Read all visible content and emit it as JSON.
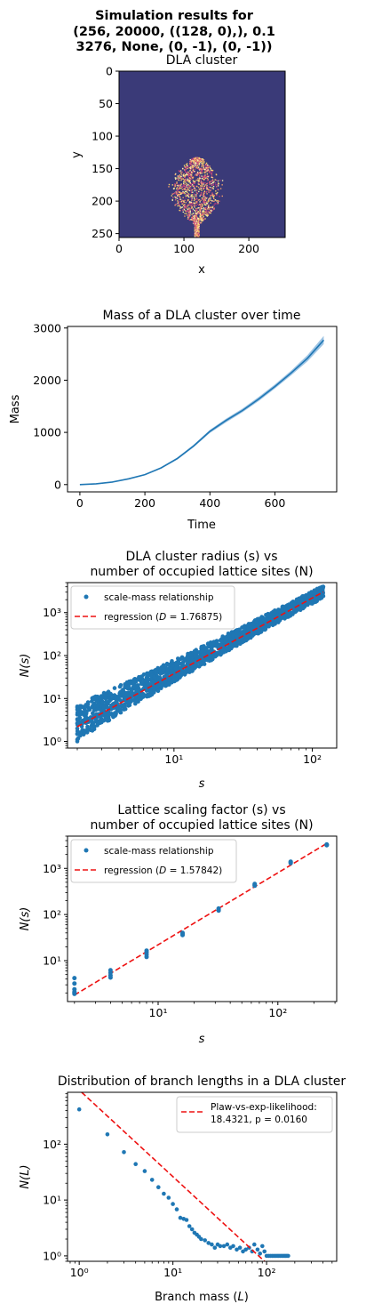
{
  "suptitle_lines": [
    "Simulation results for",
    "(256, 20000, ((128, 0),), 0.1",
    "3276, None, (0, -1), (0, -1))"
  ],
  "chart_data": [
    {
      "type": "heatmap",
      "title": "DLA cluster",
      "xlabel": "x",
      "ylabel": "y",
      "xlim": [
        0,
        256
      ],
      "ylim": [
        256,
        0
      ],
      "xticks": [
        "0",
        "100",
        "200"
      ],
      "yticks": [
        "0",
        "50",
        "100",
        "150",
        "200",
        "250"
      ],
      "background_color": "#3a3a78",
      "cluster_colors": [
        "#f7d36a",
        "#f2a06a",
        "#e05a7a",
        "#b03a7e",
        "#f7f0b0"
      ],
      "cluster": {
        "center_x": 119,
        "top_y": 132,
        "bottom_y": 255,
        "half_width": 46
      }
    },
    {
      "type": "line",
      "title": "Mass of a DLA cluster over time",
      "xlabel": "Time",
      "ylabel": "Mass",
      "xlim": [
        -38,
        790
      ],
      "ylim": [
        -140,
        3030
      ],
      "xticks": [
        0,
        200,
        400,
        600
      ],
      "yticks": [
        0,
        1000,
        2000,
        3000
      ],
      "color": "#1f77b4",
      "band_color": "#9ec4e4",
      "x": [
        0,
        50,
        100,
        150,
        200,
        250,
        300,
        350,
        400,
        450,
        500,
        550,
        600,
        650,
        700,
        750
      ],
      "mean": [
        0,
        15,
        50,
        110,
        190,
        320,
        500,
        740,
        1020,
        1230,
        1420,
        1640,
        1880,
        2140,
        2420,
        2770
      ],
      "lower": [
        0,
        14,
        48,
        105,
        182,
        306,
        480,
        715,
        990,
        1195,
        1385,
        1600,
        1840,
        2095,
        2360,
        2690
      ],
      "upper": [
        0,
        16,
        52,
        115,
        198,
        334,
        520,
        765,
        1050,
        1265,
        1455,
        1680,
        1920,
        2185,
        2480,
        2850
      ]
    },
    {
      "type": "scatter",
      "title_lines": [
        "DLA cluster radius (s) vs",
        "number of occupied lattice sites (N)"
      ],
      "xlabel": "s",
      "ylabel": "N(s)",
      "xscale": "log",
      "yscale": "log",
      "xlim": [
        1.7,
        150
      ],
      "ylim": [
        0.7,
        5000
      ],
      "xticks": [
        10,
        100
      ],
      "xtick_labels": [
        "10¹",
        "10²"
      ],
      "yticks": [
        1,
        10,
        100,
        1000
      ],
      "ytick_labels": [
        "10⁰",
        "10¹",
        "10²",
        "10³"
      ],
      "legend_position": "upper-left",
      "legend": {
        "scatter": "scale-mass relationship",
        "line": "regression (",
        "line_symbol": "D",
        "line_value": " = 1.76875)"
      },
      "exponent": 1.76875,
      "regression_points": [
        [
          2,
          2.2
        ],
        [
          120,
          3030
        ]
      ],
      "scatter_band": {
        "x_min": 2,
        "x_max": 120
      },
      "color": "#1f77b4",
      "line_color": "#ee1111"
    },
    {
      "type": "scatter",
      "title_lines": [
        "Lattice scaling factor (s) vs",
        "number of occupied lattice sites (N)"
      ],
      "xlabel": "s",
      "ylabel": "N(s)",
      "xscale": "log",
      "yscale": "log",
      "xlim": [
        1.75,
        310
      ],
      "ylim": [
        1.3,
        5000
      ],
      "xticks": [
        10,
        100
      ],
      "xtick_labels": [
        "10¹",
        "10²"
      ],
      "yticks": [
        10,
        100,
        1000
      ],
      "ytick_labels": [
        "10¹",
        "10²",
        "10³"
      ],
      "legend_position": "upper-left",
      "legend": {
        "scatter": "scale-mass relationship",
        "line": "regression (",
        "line_symbol": "D",
        "line_value": " = 1.57842)"
      },
      "exponent": 1.57842,
      "regression_points": [
        [
          2,
          1.8
        ],
        [
          256,
          3470
        ]
      ],
      "points": [
        [
          2,
          1.9
        ],
        [
          2,
          2.0
        ],
        [
          2,
          2.1
        ],
        [
          2,
          2.4
        ],
        [
          2,
          3.2
        ],
        [
          2,
          4.2
        ],
        [
          4,
          4.3
        ],
        [
          4,
          4.8
        ],
        [
          4,
          5.5
        ],
        [
          4,
          6.2
        ],
        [
          8,
          12
        ],
        [
          8,
          13.5
        ],
        [
          8,
          15
        ],
        [
          8,
          16.5
        ],
        [
          16,
          36
        ],
        [
          16,
          38
        ],
        [
          16,
          40
        ],
        [
          32,
          122
        ],
        [
          32,
          128
        ],
        [
          32,
          135
        ],
        [
          64,
          420
        ],
        [
          64,
          440
        ],
        [
          64,
          460
        ],
        [
          128,
          1300
        ],
        [
          128,
          1360
        ],
        [
          128,
          1400
        ],
        [
          256,
          3180
        ],
        [
          256,
          3230
        ],
        [
          256,
          3290
        ]
      ],
      "color": "#1f77b4",
      "line_color": "#ee1111"
    },
    {
      "type": "scatter",
      "title": "Distribution of branch lengths in a DLA cluster",
      "xlabel": "Branch mass (",
      "xlabel_symbol": "L",
      "xlabel_end": ")",
      "ylabel": "N(L)",
      "xscale": "log",
      "yscale": "log",
      "xlim": [
        0.75,
        560
      ],
      "ylim": [
        0.8,
        850
      ],
      "xticks": [
        1,
        10,
        100
      ],
      "xtick_labels": [
        "10⁰",
        "10¹",
        "10²"
      ],
      "yticks": [
        1,
        10,
        100
      ],
      "ytick_labels": [
        "10⁰",
        "10¹",
        "10²"
      ],
      "legend_position": "upper-right",
      "legend": {
        "line_1": "Plaw-vs-exp-likelihood:",
        "line_2": "18.4321, p = 0.0160"
      },
      "fit_line": [
        [
          0.85,
          1200
        ],
        [
          95,
          0.8
        ]
      ],
      "points": [
        [
          1,
          420
        ],
        [
          2,
          150
        ],
        [
          3,
          72
        ],
        [
          4,
          44
        ],
        [
          5,
          33
        ],
        [
          6,
          23
        ],
        [
          7,
          17
        ],
        [
          8,
          13
        ],
        [
          9,
          11
        ],
        [
          10,
          8.5
        ],
        [
          11,
          6.8
        ],
        [
          12,
          4.8
        ],
        [
          13,
          4.6
        ],
        [
          14,
          4.4
        ],
        [
          15,
          3.4
        ],
        [
          16,
          3.0
        ],
        [
          17,
          2.6
        ],
        [
          18,
          2.4
        ],
        [
          19,
          2.2
        ],
        [
          20,
          2.0
        ],
        [
          22,
          1.9
        ],
        [
          24,
          1.7
        ],
        [
          26,
          1.6
        ],
        [
          28,
          1.4
        ],
        [
          30,
          1.6
        ],
        [
          32,
          1.5
        ],
        [
          35,
          1.5
        ],
        [
          38,
          1.6
        ],
        [
          41,
          1.4
        ],
        [
          44,
          1.5
        ],
        [
          48,
          1.3
        ],
        [
          52,
          1.4
        ],
        [
          56,
          1.2
        ],
        [
          60,
          1.3
        ],
        [
          65,
          1.4
        ],
        [
          70,
          1.2
        ],
        [
          74,
          1.6
        ],
        [
          80,
          1.3
        ],
        [
          85,
          1.1
        ],
        [
          90,
          1.5
        ],
        [
          95,
          1.2
        ],
        [
          100,
          1.0
        ],
        [
          105,
          1.0
        ],
        [
          110,
          1.0
        ],
        [
          115,
          1.0
        ],
        [
          120,
          1.0
        ],
        [
          125,
          1.0
        ],
        [
          130,
          1.0
        ],
        [
          135,
          1.0
        ],
        [
          140,
          1.0
        ],
        [
          145,
          1.0
        ],
        [
          150,
          1.0
        ],
        [
          155,
          1.0
        ],
        [
          160,
          1.0
        ],
        [
          165,
          1.0
        ],
        [
          170,
          1.0
        ]
      ],
      "color": "#1f77b4",
      "line_color": "#ee1111"
    }
  ]
}
